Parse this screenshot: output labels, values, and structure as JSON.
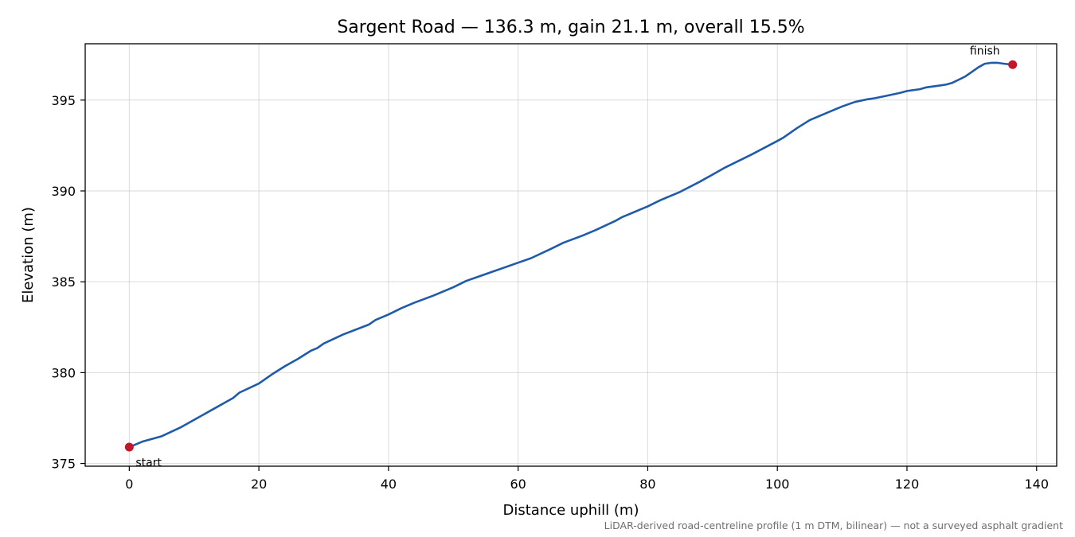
{
  "chart_data": {
    "type": "line",
    "title": "Sargent Road — 136.3 m, gain 21.1 m, overall 15.5%",
    "xlabel": "Distance uphill (m)",
    "ylabel": "Elevation (m)",
    "xlim": [
      -6.8,
      143.1
    ],
    "ylim": [
      374.85,
      398.1
    ],
    "xticks": [
      0,
      20,
      40,
      60,
      80,
      100,
      120,
      140
    ],
    "xtick_labels": [
      "0",
      "20",
      "40",
      "60",
      "80",
      "100",
      "120",
      "140"
    ],
    "yticks": [
      375,
      380,
      385,
      390,
      395
    ],
    "ytick_labels": [
      "375",
      "380",
      "385",
      "390",
      "395"
    ],
    "grid": true,
    "line_color": "#1f5aab",
    "marker_color": "#c0172a",
    "series": [
      {
        "x": [
          0,
          2,
          5,
          8,
          10,
          13,
          16,
          17,
          20,
          22,
          24,
          26,
          28,
          29,
          30,
          33,
          37,
          38,
          40,
          42,
          44,
          47,
          50,
          52,
          54,
          56,
          58,
          60,
          62,
          65,
          67,
          70,
          72,
          75,
          76,
          77,
          78,
          79,
          80,
          82,
          85,
          88,
          92,
          96,
          100,
          101,
          103,
          105,
          107,
          109,
          110,
          112,
          114,
          115,
          117,
          119,
          120,
          122,
          123,
          125,
          126,
          127,
          129,
          130,
          131,
          132,
          133,
          134,
          135,
          136.3
        ],
        "y": [
          375.9,
          376.2,
          376.5,
          377.0,
          377.4,
          378.0,
          378.6,
          378.9,
          379.4,
          379.9,
          380.35,
          380.75,
          381.2,
          381.35,
          381.6,
          382.1,
          382.65,
          382.9,
          383.2,
          383.55,
          383.85,
          384.25,
          384.7,
          385.05,
          385.3,
          385.55,
          385.8,
          386.05,
          386.3,
          386.8,
          387.15,
          387.55,
          387.85,
          388.35,
          388.55,
          388.7,
          388.85,
          389.0,
          389.15,
          389.5,
          389.95,
          390.5,
          391.3,
          392.0,
          392.75,
          392.95,
          393.45,
          393.9,
          394.2,
          394.5,
          394.65,
          394.9,
          395.05,
          395.1,
          395.25,
          395.4,
          395.5,
          395.6,
          395.7,
          395.8,
          395.85,
          395.95,
          396.3,
          396.55,
          396.8,
          397.0,
          397.05,
          397.05,
          397.0,
          396.95
        ]
      }
    ],
    "annotations": [
      {
        "text": "start",
        "x": 0,
        "y": 375.9
      },
      {
        "text": "finish",
        "x": 136.3,
        "y": 396.95
      }
    ],
    "footnote": "LiDAR-derived road-centreline profile (1 m DTM, bilinear) — not a surveyed asphalt gradient"
  }
}
